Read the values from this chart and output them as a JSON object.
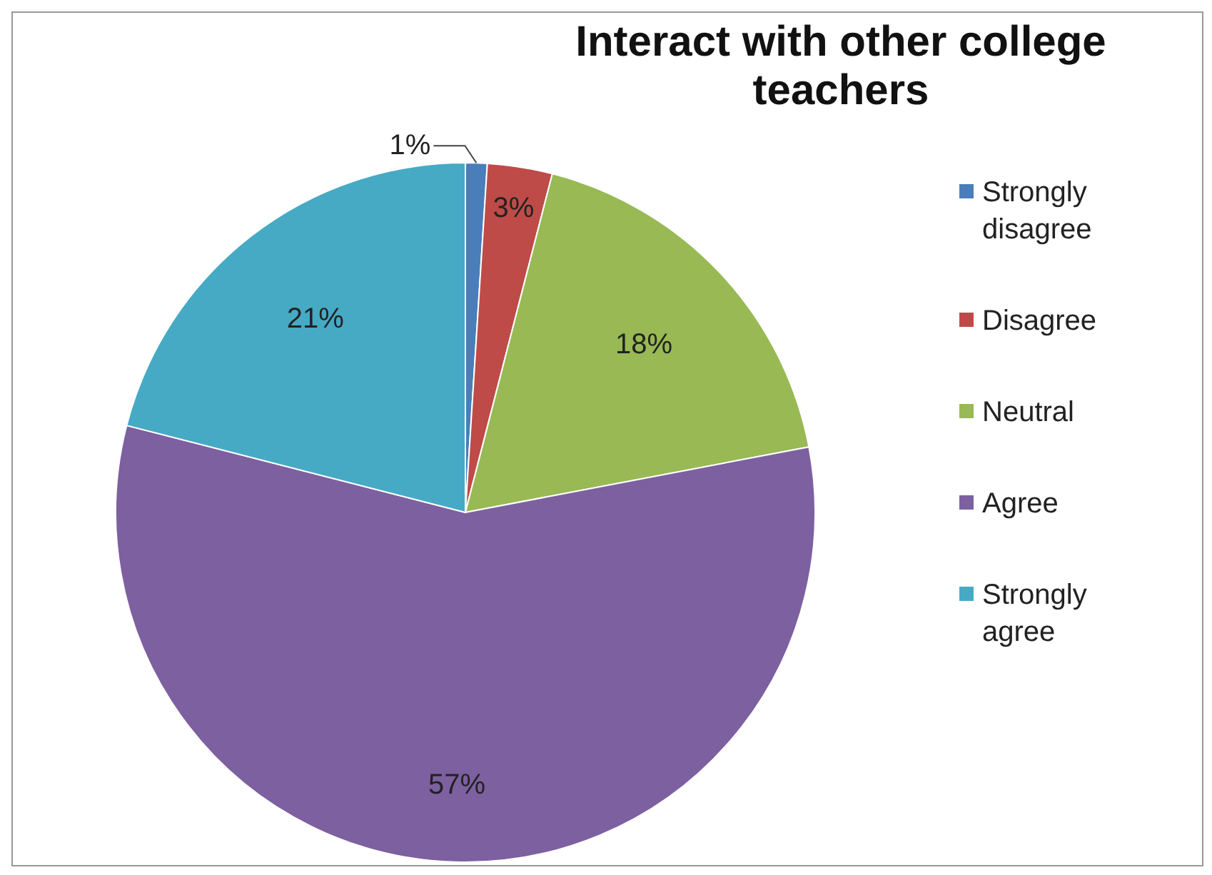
{
  "chart_data": {
    "type": "pie",
    "title": "Interact with other college teachers",
    "categories": [
      "Strongly disagree",
      "Disagree",
      "Neutral",
      "Agree",
      "Strongly agree"
    ],
    "values": [
      1,
      3,
      18,
      57,
      21
    ],
    "colors": [
      "#4a7ebb",
      "#be4b48",
      "#98b954",
      "#7d60a0",
      "#46aac5"
    ],
    "value_labels": [
      "1%",
      "3%",
      "18%",
      "57%",
      "21%"
    ],
    "legend": "right"
  }
}
